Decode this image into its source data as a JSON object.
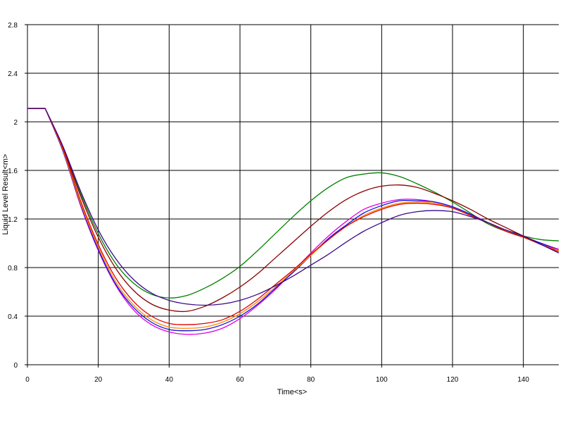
{
  "chart_data": {
    "type": "line",
    "xlabel": "Time<s>",
    "ylabel": "Liquid Level Result<m>",
    "xlim": [
      0,
      150
    ],
    "ylim": [
      0,
      2.8
    ],
    "xticks": [
      0,
      20,
      40,
      60,
      80,
      100,
      120,
      140
    ],
    "xtick_labels": [
      "0",
      "20",
      "40",
      "60",
      "80",
      "100",
      "120",
      "140"
    ],
    "yticks": [
      0,
      0.4,
      0.8,
      1.2,
      1.6,
      2.0,
      2.4,
      2.8
    ],
    "ytick_labels": [
      "0",
      "0.4",
      "0.8",
      "1.2",
      "1.6",
      "2",
      "2.4",
      "2.8"
    ],
    "grid": true,
    "legend": "none",
    "series": [
      {
        "color": "#008000",
        "x": [
          0,
          5,
          10,
          15,
          20,
          25,
          30,
          35,
          40,
          45,
          50,
          55,
          60,
          65,
          70,
          75,
          80,
          85,
          90,
          95,
          100,
          105,
          110,
          115,
          120,
          125,
          130,
          135,
          140,
          145,
          150
        ],
        "y": [
          2.11,
          2.11,
          1.79,
          1.41,
          1.08,
          0.83,
          0.67,
          0.58,
          0.55,
          0.57,
          0.63,
          0.71,
          0.81,
          0.94,
          1.08,
          1.22,
          1.35,
          1.46,
          1.54,
          1.57,
          1.58,
          1.55,
          1.49,
          1.42,
          1.34,
          1.25,
          1.16,
          1.1,
          1.06,
          1.03,
          1.02
        ]
      },
      {
        "color": "#8b0000",
        "x": [
          0,
          5,
          10,
          15,
          20,
          25,
          30,
          35,
          40,
          45,
          50,
          55,
          60,
          65,
          70,
          75,
          80,
          85,
          90,
          95,
          100,
          105,
          110,
          115,
          120,
          125,
          130,
          135,
          140,
          145,
          150
        ],
        "y": [
          2.11,
          2.11,
          1.79,
          1.39,
          1.05,
          0.79,
          0.61,
          0.5,
          0.45,
          0.44,
          0.48,
          0.55,
          0.64,
          0.75,
          0.88,
          1.01,
          1.14,
          1.26,
          1.36,
          1.43,
          1.47,
          1.48,
          1.46,
          1.41,
          1.35,
          1.28,
          1.2,
          1.13,
          1.06,
          1.0,
          0.95
        ]
      },
      {
        "color": "#e000e0",
        "x": [
          0,
          5,
          10,
          15,
          20,
          25,
          30,
          35,
          40,
          45,
          50,
          55,
          60,
          65,
          70,
          75,
          80,
          85,
          90,
          95,
          100,
          105,
          110,
          115,
          120,
          125,
          130,
          135,
          140,
          145,
          150
        ],
        "y": [
          2.11,
          2.11,
          1.76,
          1.31,
          0.94,
          0.65,
          0.45,
          0.33,
          0.27,
          0.25,
          0.26,
          0.3,
          0.38,
          0.49,
          0.62,
          0.77,
          0.92,
          1.06,
          1.18,
          1.28,
          1.33,
          1.36,
          1.36,
          1.34,
          1.3,
          1.24,
          1.17,
          1.1,
          1.05,
          1.0,
          0.95
        ]
      },
      {
        "color": "#1010e0",
        "x": [
          0,
          5,
          10,
          15,
          20,
          25,
          30,
          35,
          40,
          45,
          50,
          55,
          60,
          65,
          70,
          75,
          80,
          85,
          90,
          95,
          100,
          105,
          110,
          115,
          120,
          125,
          130,
          135,
          140,
          145,
          150
        ],
        "y": [
          2.11,
          2.11,
          1.76,
          1.32,
          0.95,
          0.66,
          0.47,
          0.35,
          0.29,
          0.28,
          0.29,
          0.33,
          0.4,
          0.5,
          0.63,
          0.76,
          0.9,
          1.04,
          1.15,
          1.25,
          1.31,
          1.35,
          1.35,
          1.34,
          1.3,
          1.24,
          1.17,
          1.1,
          1.05,
          1.0,
          0.94
        ]
      },
      {
        "color": "#ff8c00",
        "x": [
          0,
          5,
          10,
          15,
          20,
          25,
          30,
          35,
          40,
          45,
          50,
          55,
          60,
          65,
          70,
          75,
          80,
          85,
          90,
          95,
          100,
          105,
          110,
          115,
          120,
          125,
          130,
          135,
          140,
          145,
          150
        ],
        "y": [
          2.11,
          2.11,
          1.77,
          1.33,
          0.97,
          0.68,
          0.49,
          0.37,
          0.31,
          0.3,
          0.31,
          0.35,
          0.42,
          0.52,
          0.64,
          0.77,
          0.9,
          1.03,
          1.14,
          1.23,
          1.29,
          1.33,
          1.34,
          1.33,
          1.29,
          1.23,
          1.17,
          1.1,
          1.05,
          0.99,
          0.94
        ]
      },
      {
        "color": "#e00000",
        "x": [
          0,
          5,
          10,
          15,
          20,
          25,
          30,
          35,
          40,
          45,
          50,
          55,
          60,
          65,
          70,
          75,
          80,
          85,
          90,
          95,
          100,
          105,
          110,
          115,
          120,
          125,
          130,
          135,
          140,
          145,
          150
        ],
        "y": [
          2.11,
          2.11,
          1.78,
          1.35,
          0.99,
          0.71,
          0.52,
          0.4,
          0.34,
          0.33,
          0.34,
          0.37,
          0.44,
          0.54,
          0.66,
          0.78,
          0.91,
          1.03,
          1.14,
          1.22,
          1.28,
          1.32,
          1.33,
          1.32,
          1.29,
          1.23,
          1.17,
          1.1,
          1.05,
          0.99,
          0.93
        ]
      },
      {
        "color": "#3a0a8a",
        "x": [
          0,
          5,
          10,
          15,
          20,
          25,
          30,
          35,
          40,
          45,
          50,
          55,
          60,
          65,
          70,
          75,
          80,
          85,
          90,
          95,
          100,
          105,
          110,
          115,
          120,
          125,
          130,
          135,
          140,
          145,
          150
        ],
        "y": [
          2.11,
          2.11,
          1.8,
          1.43,
          1.11,
          0.87,
          0.7,
          0.59,
          0.53,
          0.5,
          0.49,
          0.5,
          0.53,
          0.58,
          0.65,
          0.73,
          0.82,
          0.91,
          1.01,
          1.1,
          1.17,
          1.23,
          1.26,
          1.27,
          1.26,
          1.22,
          1.17,
          1.11,
          1.06,
          0.99,
          0.92
        ]
      }
    ]
  }
}
